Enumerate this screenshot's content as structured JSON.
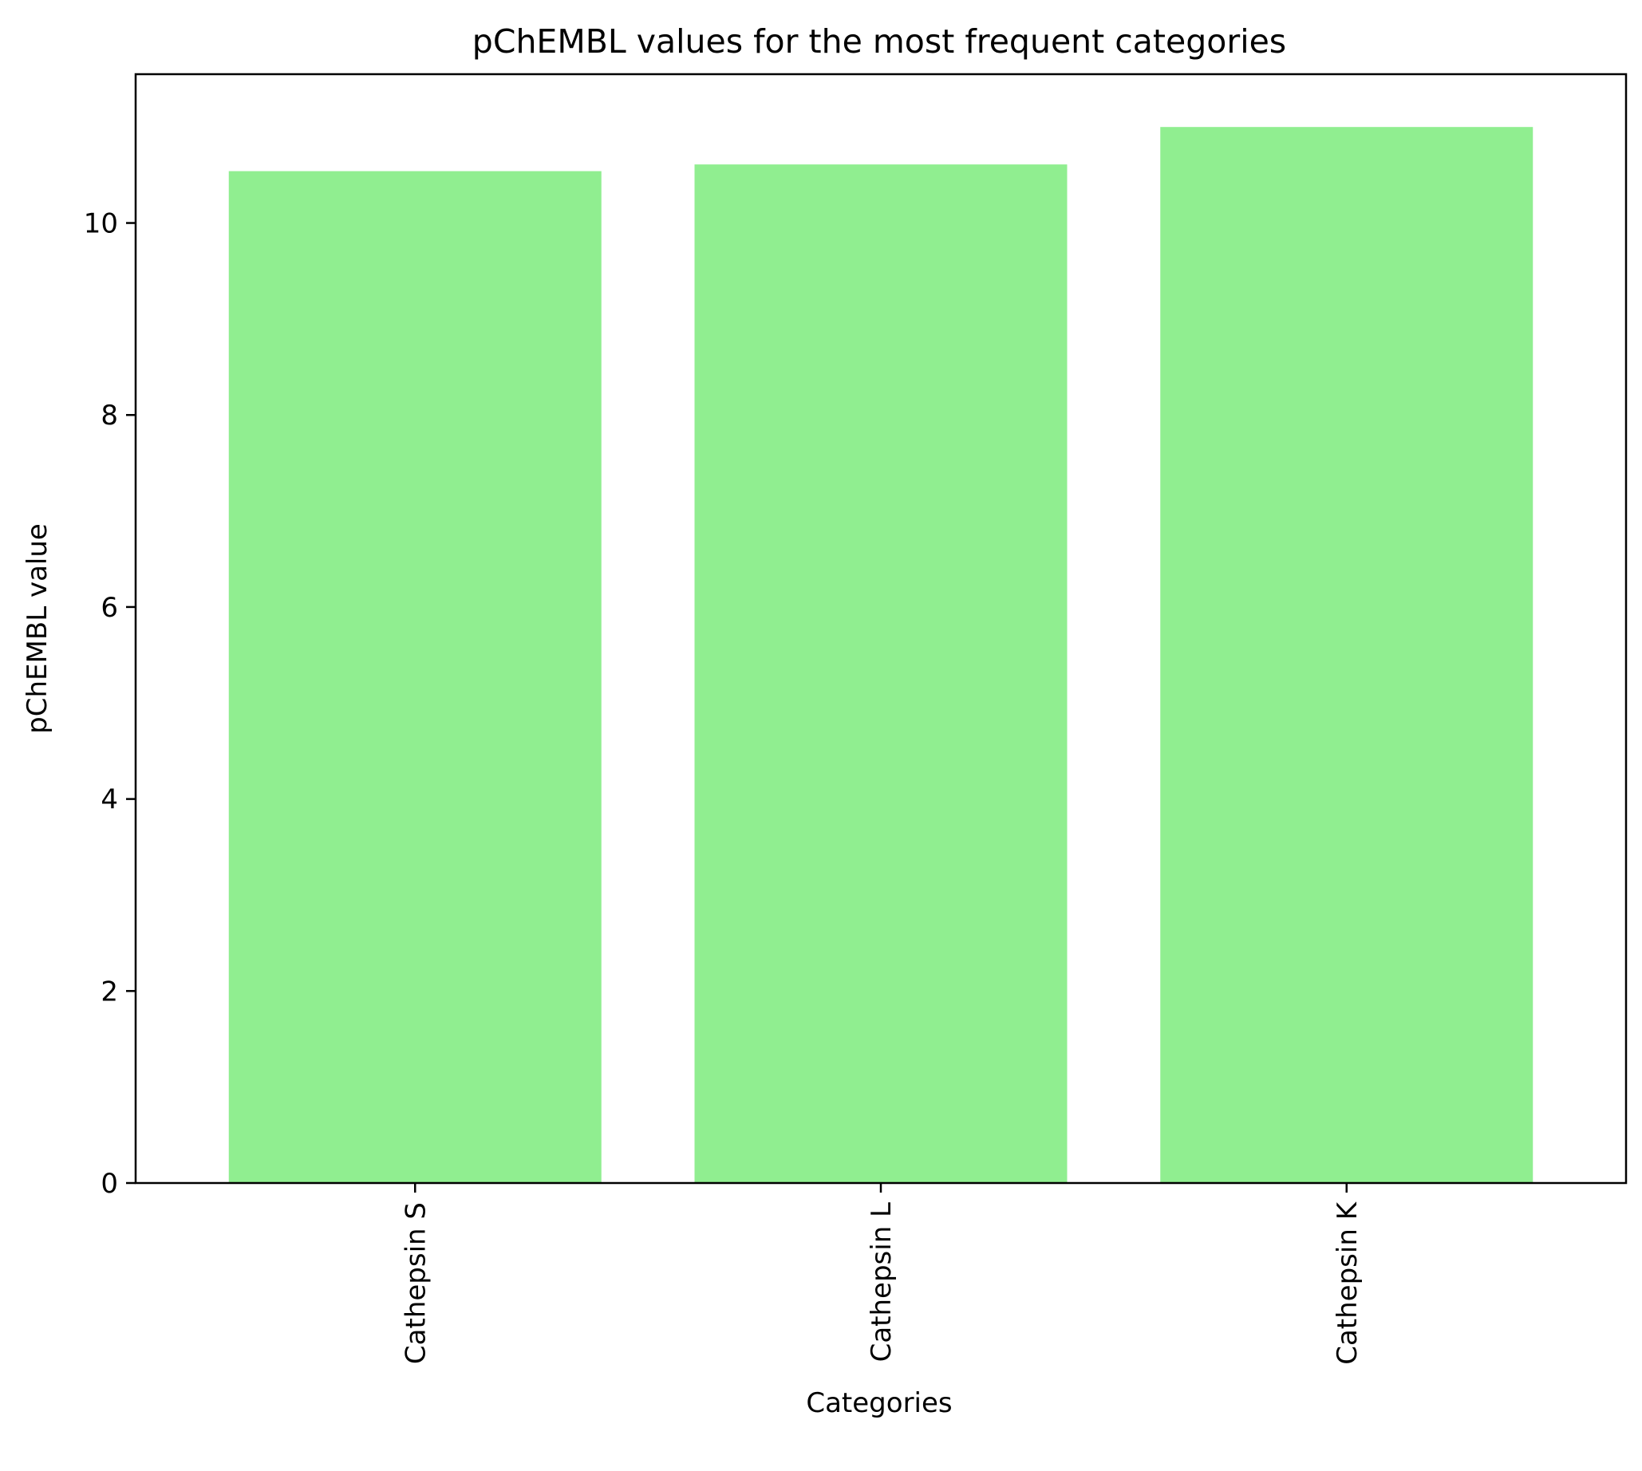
{
  "chart_data": {
    "type": "bar",
    "title": "pChEMBL values for the most frequent categories",
    "xlabel": "Categories",
    "ylabel": "pChEMBL value",
    "categories": [
      "Cathepsin S",
      "Cathepsin L",
      "Cathepsin K"
    ],
    "values": [
      10.54,
      10.61,
      11.0
    ],
    "ylim": [
      0,
      11.55
    ],
    "yticks": [
      "0",
      "2",
      "4",
      "6",
      "8",
      "10"
    ],
    "bar_color": "#90ee90",
    "grid": false,
    "legend": "none",
    "xtick_rotation": "vertical"
  }
}
